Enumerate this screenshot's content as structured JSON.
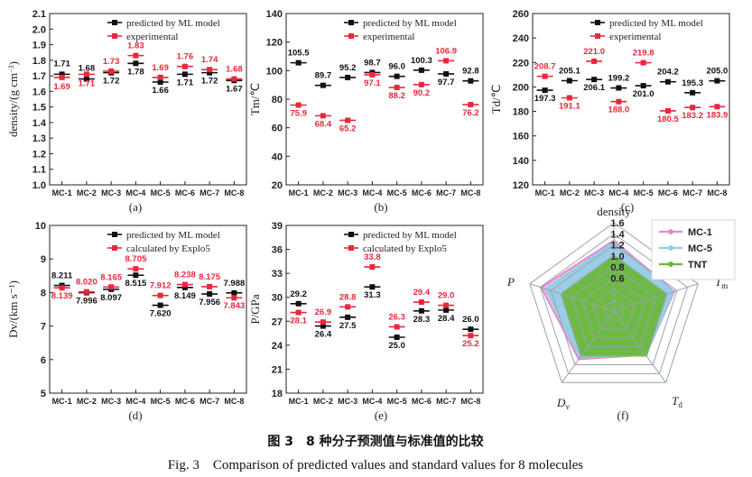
{
  "colors": {
    "predicted": "#111111",
    "reference": "#e8283c",
    "grid": "#9aa3ad",
    "mc1": "#e08cc8",
    "mc5": "#8ccfe6",
    "tnt": "#6ab83a"
  },
  "chart_data": [
    {
      "type": "scatter",
      "panel_label": "(a)",
      "ylabel": "density/(g cm⁻³)",
      "ylim": [
        1.0,
        2.1
      ],
      "yticks": [
        "1.0",
        "1.1",
        "1.2",
        "1.3",
        "1.4",
        "1.5",
        "1.6",
        "1.7",
        "1.8",
        "1.9",
        "2.0",
        "2.1"
      ],
      "categories": [
        "MC-1",
        "MC-2",
        "MC-3",
        "MC-4",
        "MC-5",
        "MC-6",
        "MC-7",
        "MC-8"
      ],
      "series": [
        {
          "name": "predicted by ML model",
          "values": [
            1.71,
            1.68,
            1.72,
            1.78,
            1.66,
            1.71,
            1.72,
            1.67
          ],
          "labels": [
            "1.71",
            "1.68",
            "1.72",
            "1.78",
            "1.66",
            "1.71",
            "1.72",
            "1.67"
          ]
        },
        {
          "name": "experimental",
          "values": [
            1.69,
            1.71,
            1.73,
            1.83,
            1.69,
            1.76,
            1.74,
            1.68
          ],
          "labels": [
            "1.69",
            "1.71",
            "1.73",
            "1.83",
            "1.69",
            "1.76",
            "1.74",
            "1.68"
          ]
        }
      ]
    },
    {
      "type": "scatter",
      "panel_label": "(b)",
      "ylabel": "Tm/℃",
      "ylim": [
        20,
        140
      ],
      "yticks": [
        "20",
        "40",
        "60",
        "80",
        "100",
        "120",
        "140"
      ],
      "categories": [
        "MC-1",
        "MC-2",
        "MC-3",
        "MC-4",
        "MC-5",
        "MC-6",
        "MC-7",
        "MC-8"
      ],
      "series": [
        {
          "name": "predicted by ML model",
          "values": [
            105.5,
            89.7,
            95.2,
            98.7,
            96.0,
            100.3,
            97.7,
            92.8
          ],
          "labels": [
            "105.5",
            "89.7",
            "95.2",
            "98.7",
            "96.0",
            "100.3",
            "97.7",
            "92.8"
          ]
        },
        {
          "name": "experimental",
          "values": [
            75.9,
            68.4,
            65.2,
            97.1,
            88.2,
            90.2,
            106.9,
            76.2
          ],
          "labels": [
            "75.9",
            "68.4",
            "65.2",
            "97.1",
            "88.2",
            "90.2",
            "106.9",
            "76.2"
          ]
        }
      ]
    },
    {
      "type": "scatter",
      "panel_label": "(c)",
      "ylabel": "Td/℃",
      "ylim": [
        120,
        260
      ],
      "yticks": [
        "120",
        "140",
        "160",
        "180",
        "200",
        "220",
        "240",
        "260"
      ],
      "categories": [
        "MC-1",
        "MC-2",
        "MC-3",
        "MC-4",
        "MC-5",
        "MC-6",
        "MC-7",
        "MC-8"
      ],
      "series": [
        {
          "name": "predicted by ML model",
          "values": [
            197.3,
            205.1,
            206.1,
            199.2,
            201.0,
            204.2,
            195.3,
            205.0
          ],
          "labels": [
            "197.3",
            "205.1",
            "206.1",
            "199.2",
            "201.0",
            "204.2",
            "195.3",
            "205.0"
          ]
        },
        {
          "name": "experimental",
          "values": [
            208.7,
            191.1,
            221.0,
            188.0,
            219.8,
            180.5,
            183.2,
            183.9
          ],
          "labels": [
            "208.7",
            "191.1",
            "221.0",
            "188.0",
            "219.8",
            "180.5",
            "183.2",
            "183.9"
          ]
        }
      ]
    },
    {
      "type": "scatter",
      "panel_label": "(d)",
      "ylabel": "Dv/(km s⁻¹)",
      "ylim": [
        5,
        10
      ],
      "yticks": [
        "5",
        "6",
        "7",
        "8",
        "9",
        "10"
      ],
      "categories": [
        "MC-1",
        "MC-2",
        "MC-3",
        "MC-4",
        "MC-5",
        "MC-6",
        "MC-7",
        "MC-8"
      ],
      "series": [
        {
          "name": "predicted by ML model",
          "values": [
            8.211,
            7.996,
            8.097,
            8.515,
            7.62,
            8.149,
            7.956,
            7.988
          ],
          "labels": [
            "8.211",
            "7.996",
            "8.097",
            "8.515",
            "7.620",
            "8.149",
            "7.956",
            "7.988"
          ]
        },
        {
          "name": "calculated by Explo5",
          "values": [
            8.139,
            8.02,
            8.165,
            8.705,
            7.912,
            8.238,
            8.175,
            7.843
          ],
          "labels": [
            "8.139",
            "8.020",
            "8.165",
            "8.705",
            "7.912",
            "8.238",
            "8.175",
            "7.843"
          ]
        }
      ]
    },
    {
      "type": "scatter",
      "panel_label": "(e)",
      "ylabel": "P/GPa",
      "ylim": [
        18,
        39
      ],
      "yticks": [
        "18",
        "21",
        "24",
        "27",
        "30",
        "33",
        "36",
        "39"
      ],
      "categories": [
        "MC-1",
        "MC-2",
        "MC-3",
        "MC-4",
        "MC-5",
        "MC-6",
        "MC-7",
        "MC-8"
      ],
      "series": [
        {
          "name": "predicted by ML model",
          "values": [
            29.2,
            26.4,
            27.5,
            31.3,
            25.0,
            28.3,
            28.4,
            26.0
          ],
          "labels": [
            "29.2",
            "26.4",
            "27.5",
            "31.3",
            "25.0",
            "28.3",
            "28.4",
            "26.0"
          ]
        },
        {
          "name": "calculated by Explo5",
          "values": [
            28.1,
            26.9,
            28.8,
            33.8,
            26.3,
            29.4,
            29.0,
            25.2
          ],
          "labels": [
            "28.1",
            "26.9",
            "28.8",
            "33.8",
            "26.3",
            "29.4",
            "29.0",
            "25.2"
          ]
        }
      ]
    },
    {
      "type": "radar",
      "panel_label": "(f)",
      "axes": [
        "density",
        "Tm",
        "Td",
        "Dv",
        "P"
      ],
      "rlim": [
        0.6,
        1.6
      ],
      "rticks": [
        "0.6",
        "0.8",
        "1.0",
        "1.2",
        "1.4",
        "1.6"
      ],
      "series": [
        {
          "name": "MC-1",
          "values": [
            1.28,
            1.15,
            0.98,
            1.08,
            1.38
          ]
        },
        {
          "name": "MC-5",
          "values": [
            1.24,
            1.13,
            0.98,
            1.04,
            1.3
          ]
        },
        {
          "name": "TNT",
          "values": [
            1.0,
            1.0,
            1.0,
            1.0,
            1.0
          ]
        }
      ]
    }
  ],
  "caption": {
    "cn": "图 3　8 种分子预测值与标准值的比较",
    "en": "Fig. 3　Comparison of predicted values and standard values for 8 molecules"
  }
}
